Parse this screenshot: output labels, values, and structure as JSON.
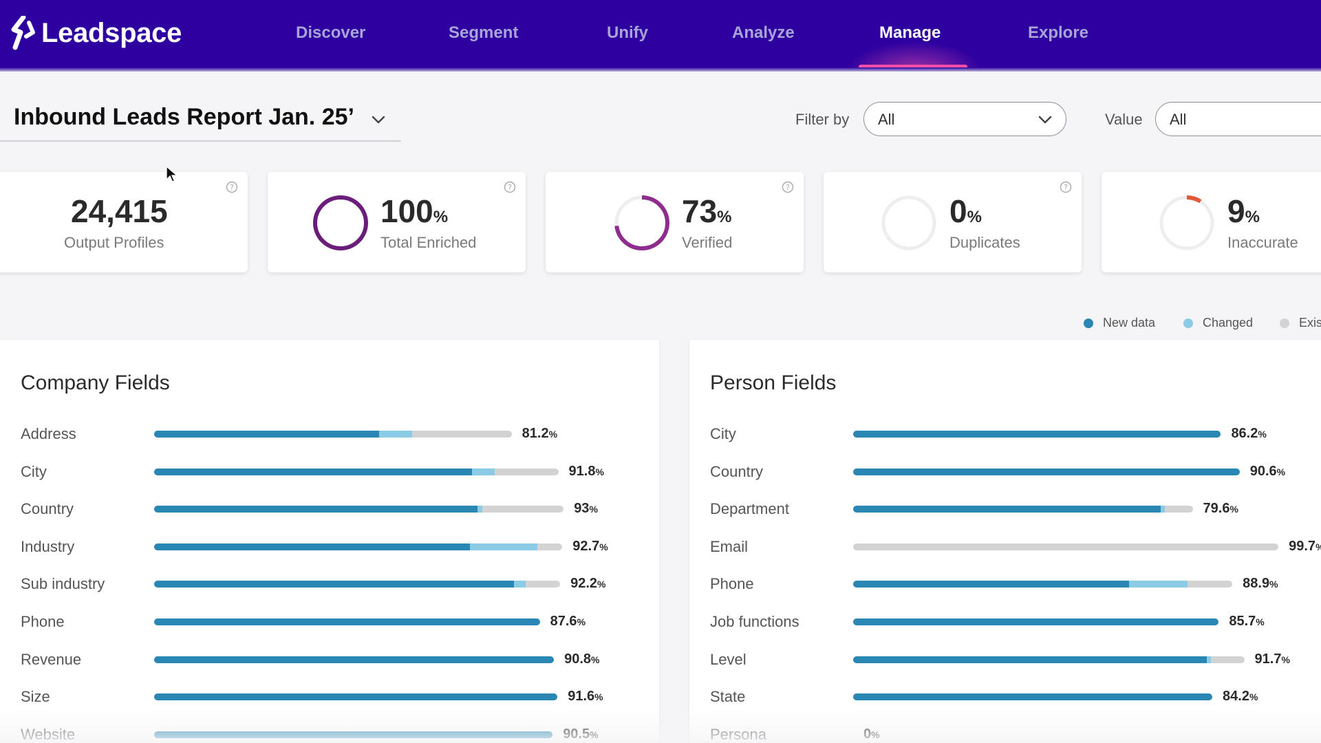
{
  "brand": {
    "name": "Leadspace"
  },
  "nav": {
    "items": [
      {
        "label": "Discover"
      },
      {
        "label": "Segment"
      },
      {
        "label": "Unify"
      },
      {
        "label": "Analyze"
      },
      {
        "label": "Manage",
        "active": true
      },
      {
        "label": "Explore"
      }
    ]
  },
  "report": {
    "title": "Inbound Leads Report Jan. 25’"
  },
  "filters": {
    "filter_by_label": "Filter by",
    "filter_by_value": "All",
    "value_label": "Value",
    "value_value": "All"
  },
  "kpis": [
    {
      "value": "24,415",
      "pct": "",
      "label": "Output Profiles"
    },
    {
      "value": "100",
      "pct": "%",
      "label": "Total Enriched",
      "ring_fraction": 1.0,
      "ring_color": "#6a1d7a"
    },
    {
      "value": "73",
      "pct": "%",
      "label": "Verified",
      "ring_fraction": 0.73,
      "ring_color": "#8e2d8e"
    },
    {
      "value": "0",
      "pct": "%",
      "label": "Duplicates",
      "ring_fraction": 0.0,
      "ring_color": "#e05a3a"
    },
    {
      "value": "9",
      "pct": "%",
      "label": "Inaccurate",
      "ring_fraction": 0.09,
      "ring_color": "#e05a3a"
    }
  ],
  "legend": {
    "new_data": {
      "label": "New data",
      "color": "#2a86b3"
    },
    "changed": {
      "label": "Changed",
      "color": "#8ccbe6"
    },
    "existing": {
      "label": "Exis",
      "color": "#d3d3d3"
    }
  },
  "company_fields": {
    "title": "Company Fields",
    "rows": [
      {
        "label": "Address",
        "value": "81.2",
        "new": 0.629,
        "changed": 0.092
      },
      {
        "label": "City",
        "value": "91.8",
        "new": 0.787,
        "changed": 0.055
      },
      {
        "label": "Country",
        "value": "93",
        "new": 0.79,
        "changed": 0.011
      },
      {
        "label": "Industry",
        "value": "92.7",
        "new": 0.773,
        "changed": 0.166
      },
      {
        "label": "Sub industry",
        "value": "92.2",
        "new": 0.886,
        "changed": 0.03
      },
      {
        "label": "Phone",
        "value": "87.6",
        "new": 1.0,
        "changed": 0.0
      },
      {
        "label": "Revenue",
        "value": "90.8",
        "new": 1.0,
        "changed": 0.0
      },
      {
        "label": "Size",
        "value": "91.6",
        "new": 1.0,
        "changed": 0.0
      },
      {
        "label": "Website",
        "value": "90.5",
        "new": 1.0,
        "changed": 0.0
      }
    ]
  },
  "person_fields": {
    "title": "Person Fields",
    "rows": [
      {
        "label": "City",
        "value": "86.2",
        "new": 1.0,
        "changed": 0.0
      },
      {
        "label": "Country",
        "value": "90.6",
        "new": 1.0,
        "changed": 0.0
      },
      {
        "label": "Department",
        "value": "79.6",
        "new": 0.906,
        "changed": 0.012
      },
      {
        "label": "Email",
        "value": "99.7",
        "new": 0.0,
        "changed": 0.0
      },
      {
        "label": "Phone",
        "value": "88.9",
        "new": 0.728,
        "changed": 0.154
      },
      {
        "label": "Job functions",
        "value": "85.7",
        "new": 1.0,
        "changed": 0.0
      },
      {
        "label": "Level",
        "value": "91.7",
        "new": 0.904,
        "changed": 0.01
      },
      {
        "label": "State",
        "value": "84.2",
        "new": 1.0,
        "changed": 0.0
      },
      {
        "label": "Persona",
        "value": "0",
        "new": 0.0,
        "changed": 0.0
      }
    ]
  }
}
